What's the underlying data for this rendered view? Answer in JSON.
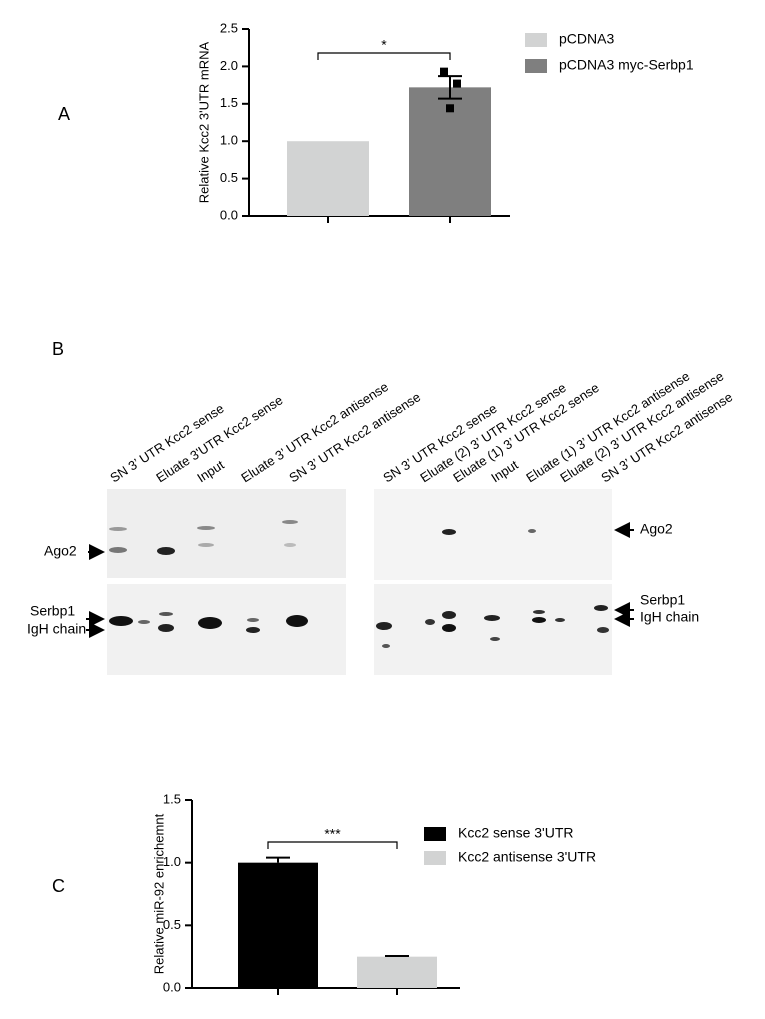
{
  "panel_labels": [
    "A",
    "B",
    "C"
  ],
  "chart_data": [
    {
      "type": "bar",
      "ylabel": "Relative Kcc2 3'UTR mRNA",
      "categories": [
        null,
        null
      ],
      "series": [
        {
          "name": "pCDNA3",
          "color": "#d2d3d3",
          "values": [
            1.0,
            null
          ]
        },
        {
          "name": "pCDNA3 myc-Serbp1",
          "color": "#7f7f7f",
          "values": [
            null,
            1.72
          ],
          "errors": [
            null,
            0.15
          ],
          "points": [
            1.93,
            1.77,
            1.44
          ]
        }
      ],
      "ylim": [
        0,
        2.5
      ],
      "yticks": [
        {
          "value": 0,
          "label": "0.0"
        },
        0.5,
        {
          "value": 1,
          "label": "1.0"
        },
        1.5,
        {
          "value": 2,
          "label": "2.0"
        },
        2.5
      ],
      "annotation": "*"
    },
    {
      "type": "bar",
      "ylabel": "Relative miR-92 enrichemnt",
      "categories": [
        null,
        null
      ],
      "series": [
        {
          "name": "Kcc2 sense 3'UTR",
          "color": "#000000",
          "values": [
            1.0,
            null
          ],
          "errors": [
            0.04,
            null
          ]
        },
        {
          "name": "Kcc2 antisense 3'UTR",
          "color": "#d2d3d3",
          "values": [
            null,
            0.25
          ],
          "errors": [
            null,
            0.005
          ]
        }
      ],
      "ylim": [
        0,
        1.5
      ],
      "yticks": [
        {
          "value": 0,
          "label": "0.0"
        },
        0.5,
        {
          "value": 1,
          "label": "1.0"
        },
        1.5
      ],
      "annotation": "***"
    }
  ],
  "blot": {
    "left_lanes": [
      "SN 3’ UTR Kcc2 sense",
      "Eluate 3'UTR Kcc2 sense",
      "Input",
      "Eluate 3’ UTR Kcc2 antisense",
      "SN 3’ UTR Kcc2 antisense"
    ],
    "right_lanes": [
      "SN 3’ UTR Kcc2 sense",
      "Eluate (2) 3’ UTR Kcc2 sense",
      "Eluate (1) 3’ UTR Kcc2 sense",
      "Input",
      "Eluate (1) 3’ UTR Kcc2 antisense",
      "Eluate (2) 3’ UTR Kcc2 antisense",
      "SN 3’ UTR Kcc2 antisense"
    ],
    "left_markers": [
      "Ago2",
      "Serbp1",
      "IgH chain"
    ],
    "right_markers": [
      "Ago2",
      "Serbp1",
      "IgH chain"
    ]
  }
}
